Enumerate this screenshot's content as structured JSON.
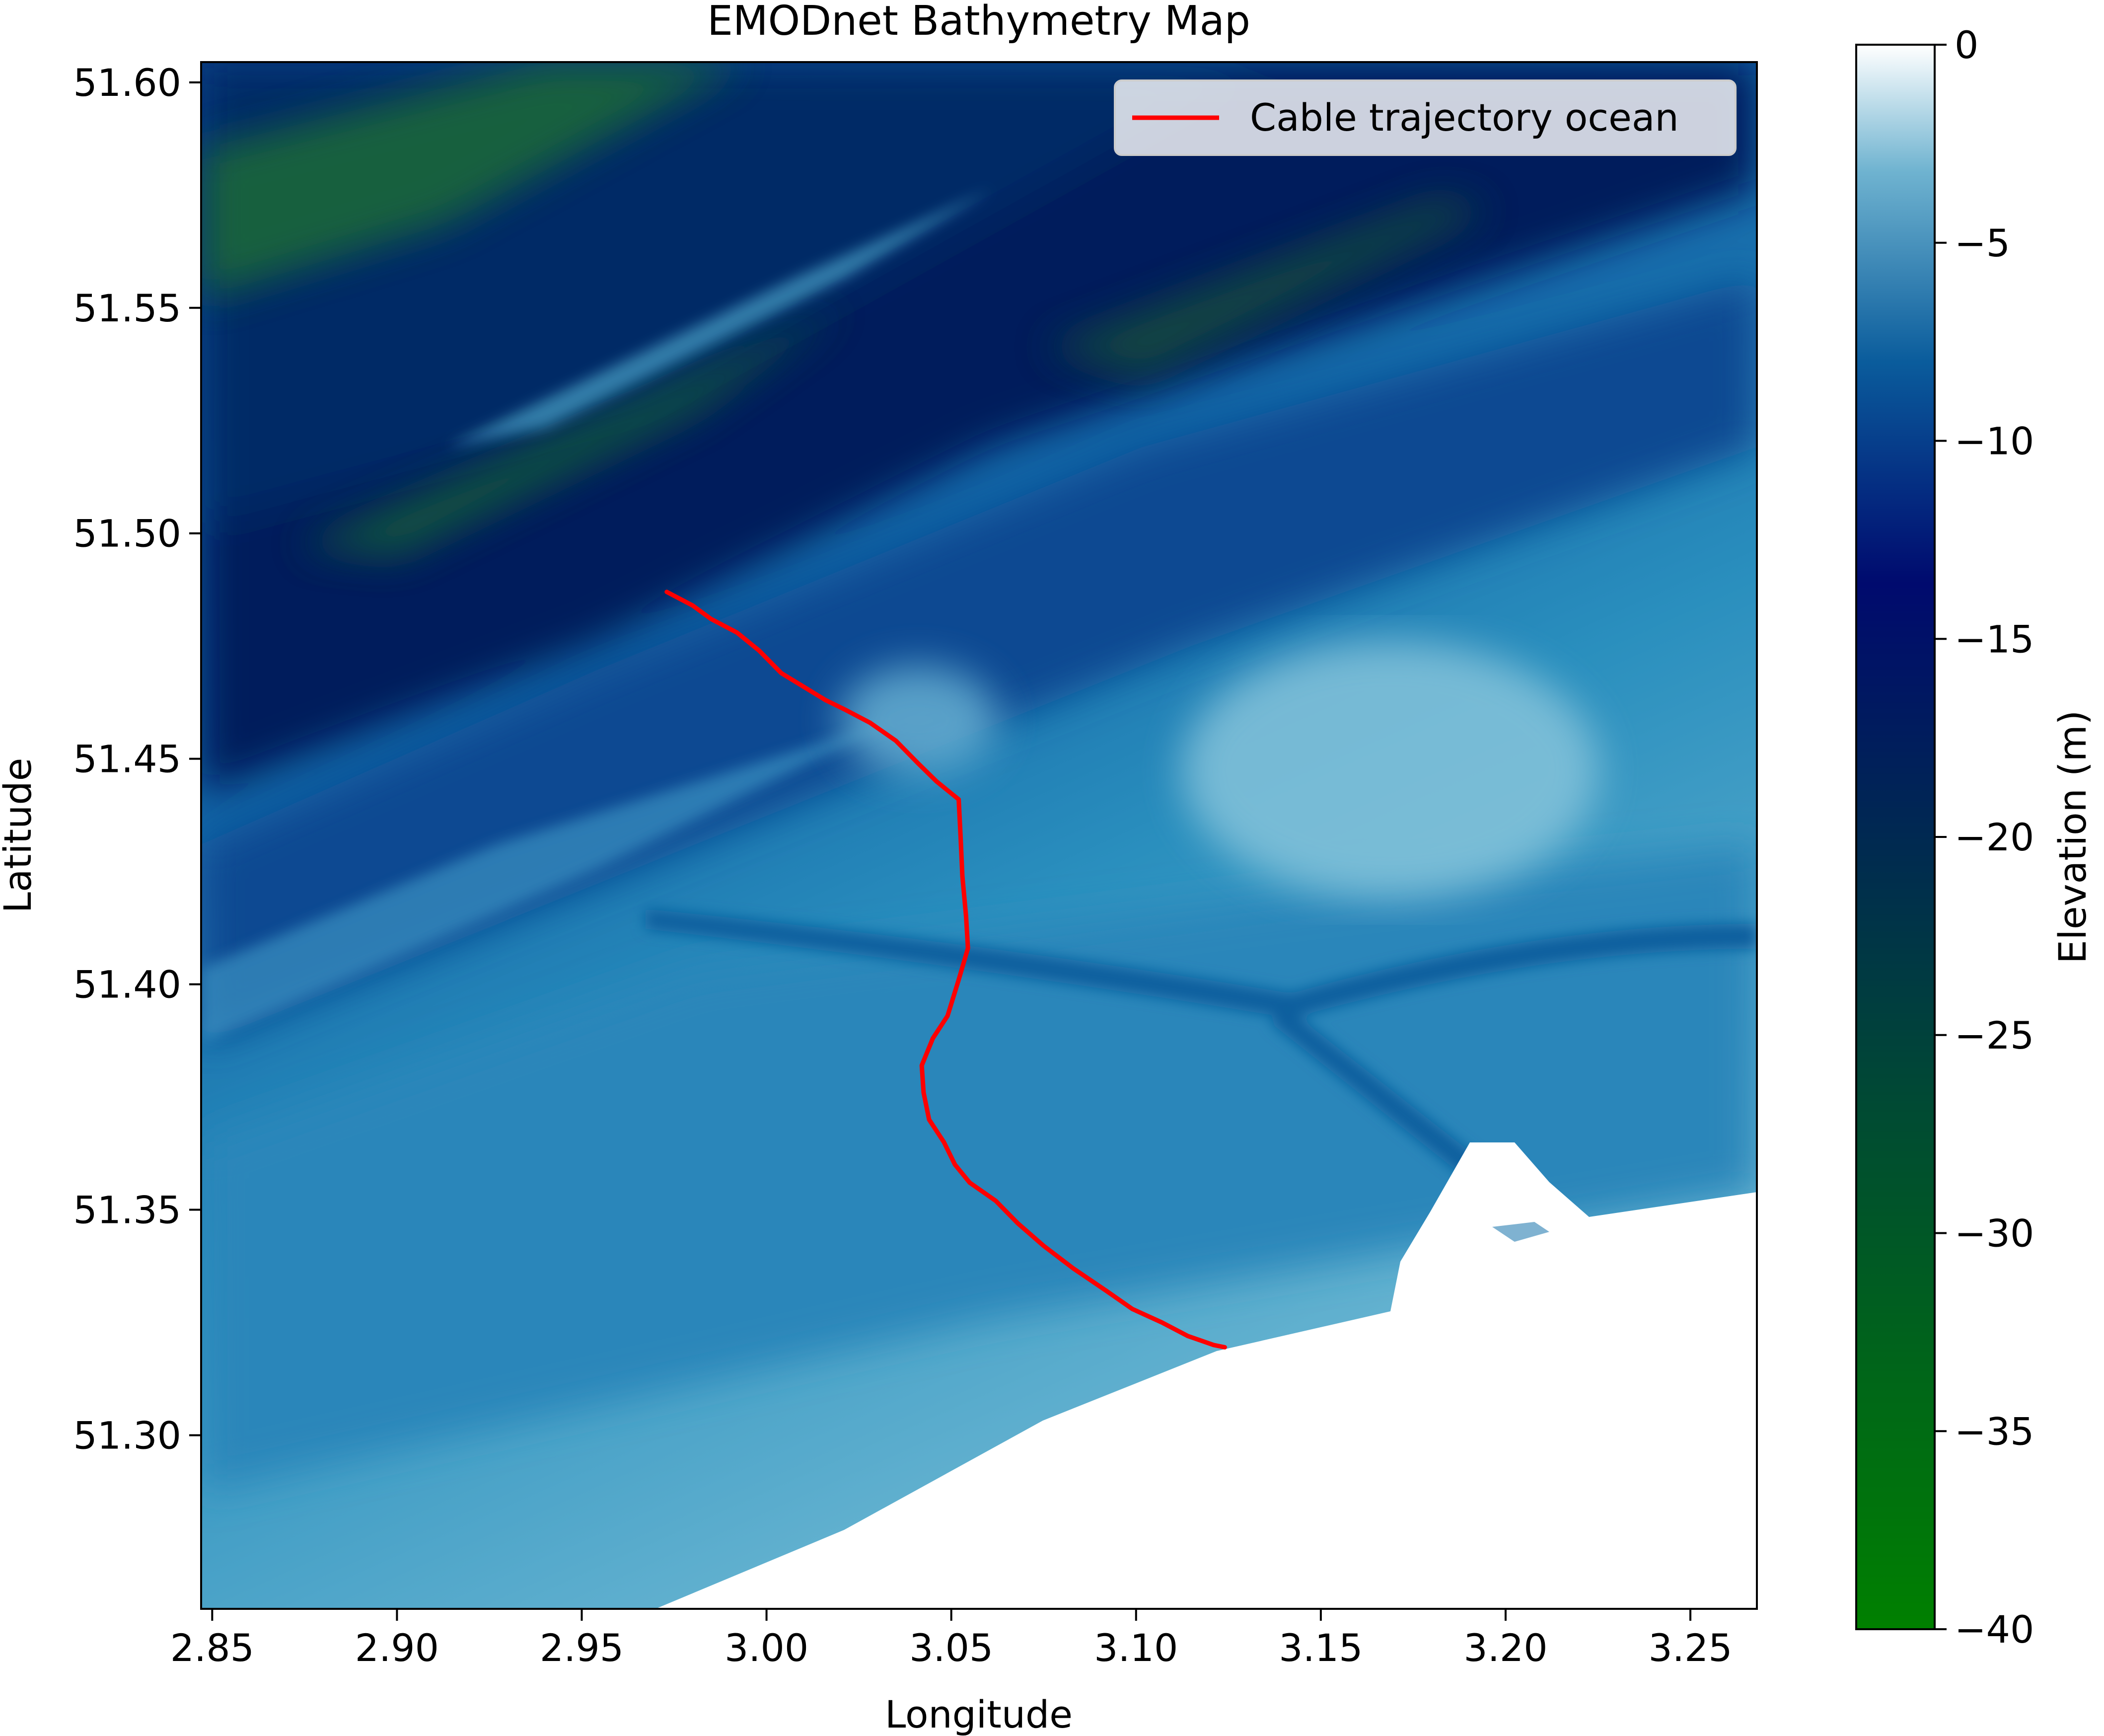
{
  "chart_data": {
    "type": "heatmap",
    "title": "EMODnet Bathymetry Map",
    "xlabel": "Longitude",
    "ylabel": "Latitude",
    "xlim": [
      2.847,
      3.268
    ],
    "ylim": [
      51.2615,
      51.6045
    ],
    "xticks": [
      2.85,
      2.9,
      2.95,
      3.0,
      3.05,
      3.1,
      3.15,
      3.2,
      3.25
    ],
    "xtick_labels": [
      "2.85",
      "2.90",
      "2.95",
      "3.00",
      "3.05",
      "3.10",
      "3.15",
      "3.20",
      "3.25"
    ],
    "yticks": [
      51.3,
      51.35,
      51.4,
      51.45,
      51.5,
      51.55,
      51.6
    ],
    "ytick_labels": [
      "51.30",
      "51.35",
      "51.40",
      "51.45",
      "51.50",
      "51.55",
      "51.60"
    ],
    "colorbar": {
      "label": "Elevation (m)",
      "range": [
        -40,
        0
      ],
      "ticks": [
        0,
        -5,
        -10,
        -15,
        -20,
        -25,
        -30,
        -35,
        -40
      ],
      "tick_labels": [
        "0",
        "−5",
        "−10",
        "−15",
        "−20",
        "−25",
        "−30",
        "−35",
        "−40"
      ],
      "colormap": "ocean"
    },
    "legend": {
      "position": "top-right"
    },
    "series": [
      {
        "name": "Cable trajectory ocean",
        "type": "line",
        "color": "#ff0000",
        "points": [
          [
            2.973,
            51.487
          ],
          [
            2.98,
            51.484
          ],
          [
            2.985,
            51.481
          ],
          [
            2.992,
            51.478
          ],
          [
            2.998,
            51.474
          ],
          [
            3.004,
            51.469
          ],
          [
            3.01,
            51.466
          ],
          [
            3.016,
            51.463
          ],
          [
            3.021,
            51.461
          ],
          [
            3.028,
            51.458
          ],
          [
            3.035,
            51.454
          ],
          [
            3.041,
            51.449
          ],
          [
            3.046,
            51.445
          ],
          [
            3.052,
            51.441
          ],
          [
            3.0525,
            51.433
          ],
          [
            3.053,
            51.424
          ],
          [
            3.054,
            51.415
          ],
          [
            3.0545,
            51.408
          ],
          [
            3.052,
            51.401
          ],
          [
            3.049,
            51.393
          ],
          [
            3.045,
            51.388
          ],
          [
            3.042,
            51.382
          ],
          [
            3.0425,
            51.376
          ],
          [
            3.044,
            51.37
          ],
          [
            3.048,
            51.365
          ],
          [
            3.051,
            51.36
          ],
          [
            3.055,
            51.356
          ],
          [
            3.062,
            51.352
          ],
          [
            3.068,
            51.347
          ],
          [
            3.075,
            51.342
          ],
          [
            3.083,
            51.337
          ],
          [
            3.092,
            51.332
          ],
          [
            3.099,
            51.328
          ],
          [
            3.107,
            51.325
          ],
          [
            3.114,
            51.322
          ],
          [
            3.121,
            51.32
          ],
          [
            3.124,
            51.3195
          ]
        ]
      }
    ]
  }
}
